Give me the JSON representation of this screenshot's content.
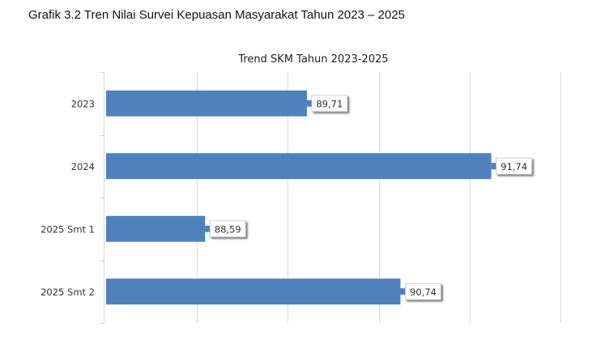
{
  "caption": "Grafik 3.2 Tren Nilai Survei Kepuasan Masyarakat  Tahun 2023 – 2025",
  "chart_data": {
    "type": "bar",
    "orientation": "horizontal",
    "title": "Trend SKM Tahun 2023-2025",
    "categories": [
      "2023",
      "2024",
      "2025 Smt 1",
      "2025 Smt 2"
    ],
    "values": [
      89.71,
      91.74,
      88.59,
      90.74
    ],
    "data_labels": [
      "89,71",
      "91,74",
      "88,59",
      "90,74"
    ],
    "xlim": [
      87.5,
      92.5
    ],
    "grid": true,
    "legend": "none",
    "bar_color": "#4F81BD"
  }
}
